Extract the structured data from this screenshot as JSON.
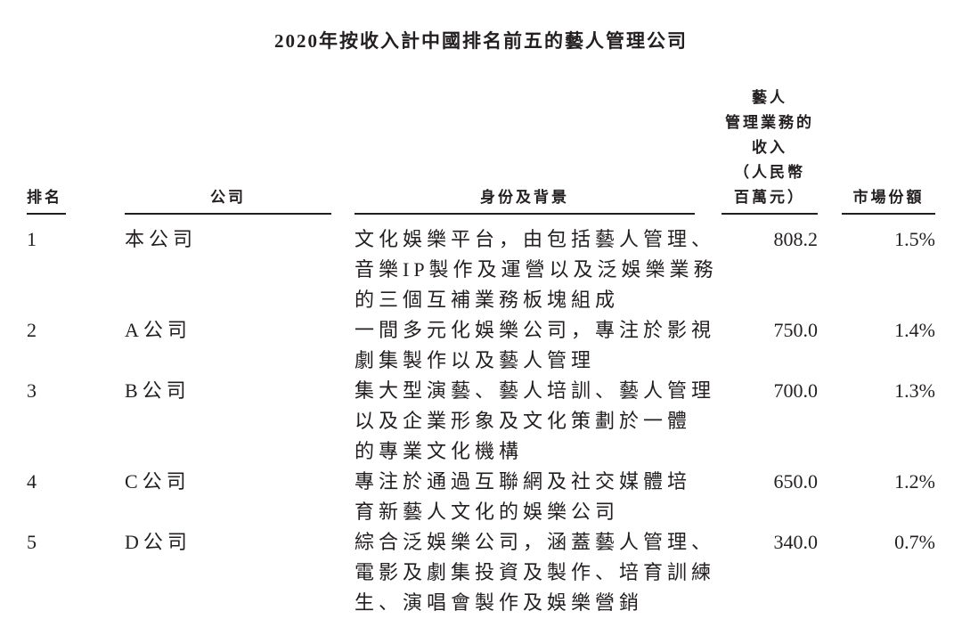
{
  "title": "2020年按收入計中國排名前五的藝人管理公司",
  "headers": {
    "rank": "排名",
    "company": "公司",
    "background": "身份及背景",
    "revenue": [
      "藝人",
      "管理業務的",
      "收入",
      "（人民幣",
      "百萬元）"
    ],
    "share": "市場份額"
  },
  "rows": [
    {
      "rank": "1",
      "company": "本公司",
      "background": [
        "文化娛樂平台，由包括藝人管理、",
        "音樂IP製作及運營以及泛娛樂業務",
        "的三個互補業務板塊組成"
      ],
      "revenue": "808.2",
      "share": "1.5%"
    },
    {
      "rank": "2",
      "company": "A公司",
      "background": [
        "一間多元化娛樂公司，專注於影視",
        "劇集製作以及藝人管理"
      ],
      "revenue": "750.0",
      "share": "1.4%"
    },
    {
      "rank": "3",
      "company": "B公司",
      "background": [
        "集大型演藝、藝人培訓、藝人管理",
        "以及企業形象及文化策劃於一體",
        "的專業文化機構"
      ],
      "revenue": "700.0",
      "share": "1.3%"
    },
    {
      "rank": "4",
      "company": "C公司",
      "background": [
        "專注於通過互聯網及社交媒體培",
        "育新藝人文化的娛樂公司"
      ],
      "revenue": "650.0",
      "share": "1.2%"
    },
    {
      "rank": "5",
      "company": "D公司",
      "background": [
        "綜合泛娛樂公司，涵蓋藝人管理、",
        "電影及劇集投資及製作、培育訓練",
        "生、演唱會製作及娛樂營銷"
      ],
      "revenue": "340.0",
      "share": "0.7%"
    }
  ]
}
